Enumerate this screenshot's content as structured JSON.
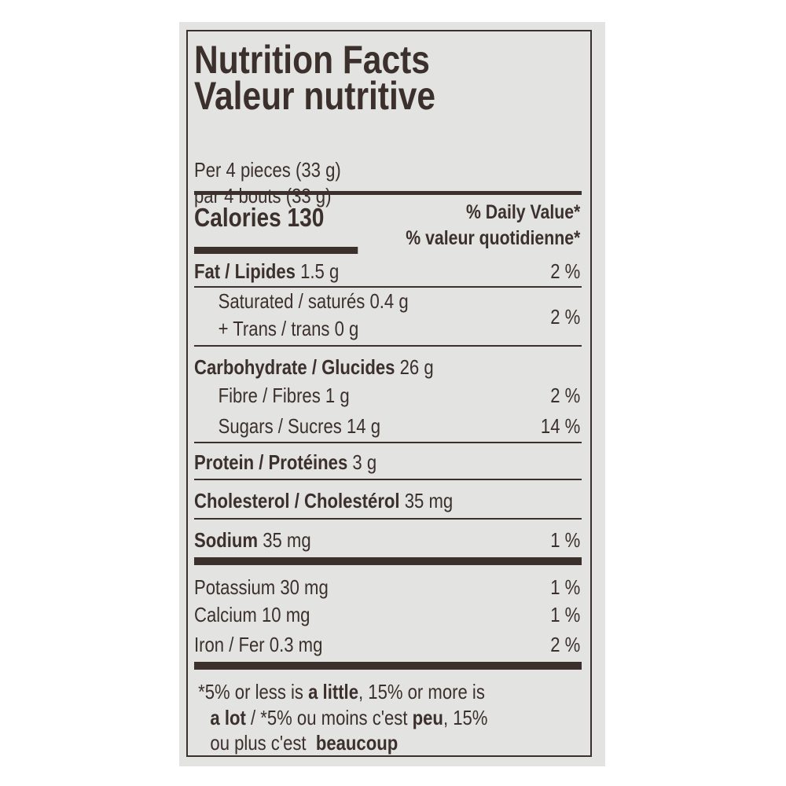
{
  "title_en": "Nutrition Facts",
  "title_fr": "Valeur nutritive",
  "serving_en": "Per 4 pieces (33 g)",
  "serving_fr": "par 4 bouts (33 g)",
  "calories_label": "Calories",
  "calories_value": "130",
  "dv_en": "% Daily Value*",
  "dv_fr": "% valeur quotidienne*",
  "nutrients": [
    {
      "label": "Fat / Lipides",
      "amount": "1.5 g",
      "dv": "2 %"
    },
    {
      "label": "Saturated / saturés",
      "amount": "0.4 g"
    },
    {
      "label": "+ Trans / trans",
      "amount": "0 g",
      "dv": "2 %"
    },
    {
      "label": "Carbohydrate / Glucides",
      "amount": "26 g"
    },
    {
      "label": "Fibre / Fibres",
      "amount": "1 g",
      "dv": "2 %"
    },
    {
      "label": "Sugars / Sucres",
      "amount": "14 g",
      "dv": "14 %"
    },
    {
      "label": "Protein / Protéines",
      "amount": "3 g"
    },
    {
      "label": "Cholesterol / Cholestérol",
      "amount": "35 mg"
    },
    {
      "label": "Sodium",
      "amount": "35 mg",
      "dv": "1 %"
    },
    {
      "label": "Potassium",
      "amount": "30 mg",
      "dv": "1 %"
    },
    {
      "label": "Calcium",
      "amount": "10 mg",
      "dv": "1 %"
    },
    {
      "label": "Iron / Fer",
      "amount": "0.3 mg",
      "dv": "2 %"
    }
  ],
  "footnote": {
    "p1": "*5% or less is ",
    "b1": "a little",
    "p2": ", 15% or more is",
    "b2": "a lot",
    "p3": " / *5% ou moins c'est ",
    "b3": "peu",
    "p4": ", 15%",
    "p5": "ou plus c'est  ",
    "b4": "beaucoup"
  },
  "colors": {
    "ink": "#3b302c",
    "background": "#e3e3e1"
  }
}
